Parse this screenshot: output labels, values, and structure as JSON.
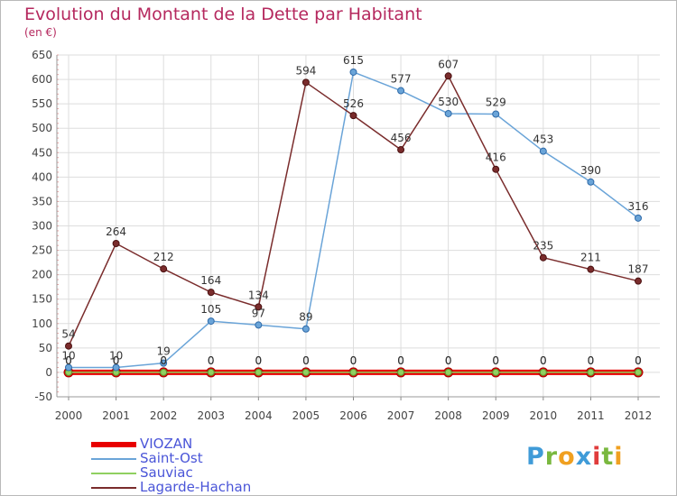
{
  "header": {
    "title": "Evolution du Montant de la Dette par Habitant",
    "unit": "(en €)"
  },
  "colors": {
    "title": "#b5285e",
    "legend_text": "#4a55d8",
    "grid": "#dddddd"
  },
  "brand": {
    "letters": [
      "P",
      "r",
      "o",
      "x",
      "i",
      "t",
      "i"
    ],
    "colors": [
      "#3f9bd8",
      "#7ab83f",
      "#f0a020",
      "#3f9bd8",
      "#e03c3c",
      "#7ab83f",
      "#f0a020"
    ]
  },
  "chart_data": {
    "type": "line",
    "title": "Evolution du Montant de la Dette par Habitant",
    "ylabel": "(en €)",
    "xlabel": "",
    "x": [
      "2000",
      "2001",
      "2002",
      "2003",
      "2004",
      "2005",
      "2006",
      "2007",
      "2008",
      "2009",
      "2010",
      "2011",
      "2012"
    ],
    "ylim": [
      -50,
      650
    ],
    "yticks": [
      -50,
      0,
      50,
      100,
      150,
      200,
      250,
      300,
      350,
      400,
      450,
      500,
      550,
      600,
      650
    ],
    "grid": true,
    "legend_position": "bottom-left",
    "series": [
      {
        "name": "VIOZAN",
        "color": "#e80000",
        "values": [
          0,
          0,
          0,
          0,
          0,
          0,
          0,
          0,
          0,
          0,
          0,
          0,
          0
        ],
        "labels": [
          "0",
          "0",
          "0",
          "0",
          "0",
          "0",
          "0",
          "0",
          "0",
          "0",
          "0",
          "0",
          "0"
        ]
      },
      {
        "name": "Saint-Ost",
        "color": "#6aa4d8",
        "values": [
          10,
          10,
          19,
          105,
          97,
          89,
          615,
          577,
          530,
          529,
          453,
          390,
          316
        ],
        "labels": [
          "10",
          "10",
          "19",
          "105",
          "97",
          "89",
          "615",
          "577",
          "530",
          "529",
          "453",
          "390",
          "316"
        ]
      },
      {
        "name": "Sauviac",
        "color": "#90d060",
        "values": [
          0,
          0,
          0,
          0,
          0,
          0,
          0,
          0,
          0,
          0,
          0,
          0,
          0
        ],
        "labels": [
          "0",
          "0",
          "0",
          "0",
          "0",
          "0",
          "0",
          "0",
          "0",
          "0",
          "0",
          "0",
          "0"
        ]
      },
      {
        "name": "Lagarde-Hachan",
        "color": "#7a2c2c",
        "values": [
          54,
          264,
          212,
          164,
          134,
          594,
          526,
          456,
          607,
          416,
          235,
          211,
          187
        ],
        "labels": [
          "54",
          "264",
          "212",
          "164",
          "134",
          "594",
          "526",
          "456",
          "607",
          "416",
          "235",
          "211",
          "187"
        ]
      }
    ]
  }
}
